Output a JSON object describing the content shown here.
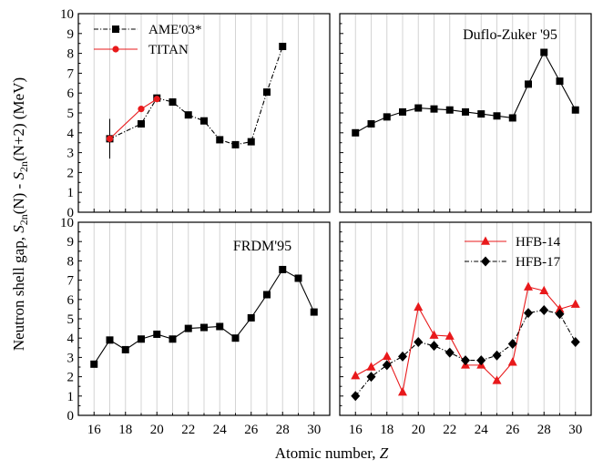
{
  "figure": {
    "ylabel": "Neutron shell gap, S2n(N) - S2n(N+2) (MeV)",
    "ylabel_parts": {
      "prefix": "Neutron shell gap, ",
      "s1": "S",
      "sub1": "2n",
      "mid": "(N) - ",
      "s2": "S",
      "sub2": "2n",
      "suffix": "(N+2) (MeV)"
    },
    "xlabel": "Atomic number, Z",
    "xlabel_parts": {
      "prefix": "Atomic number, ",
      "var": "Z"
    }
  },
  "chart_data": [
    {
      "type": "line",
      "panel": "top-left",
      "title": "",
      "x_range": [
        15,
        31
      ],
      "ylim": [
        0,
        10
      ],
      "grid": "vertical",
      "yticks": [
        0,
        1,
        2,
        3,
        4,
        5,
        6,
        7,
        8,
        9,
        10
      ],
      "xticks": [
        16,
        18,
        20,
        22,
        24,
        26,
        28,
        30
      ],
      "legend": "top-left",
      "series": [
        {
          "name": "AME'03*",
          "color": "#000000",
          "marker": "square",
          "line_style": "dash-dot",
          "x": [
            17,
            19,
            20,
            21,
            22,
            23,
            24,
            25,
            26,
            27,
            28
          ],
          "y": [
            3.7,
            4.45,
            5.75,
            5.55,
            4.9,
            4.6,
            3.65,
            3.4,
            3.55,
            6.05,
            8.35
          ],
          "error": [
            1.0,
            0,
            0,
            0,
            0,
            0,
            0,
            0,
            0,
            0,
            0
          ]
        },
        {
          "name": "TITAN",
          "color": "#e8191b",
          "marker": "circle",
          "line_style": "solid",
          "x": [
            17,
            19,
            20
          ],
          "y": [
            3.7,
            5.2,
            5.7
          ]
        }
      ]
    },
    {
      "type": "line",
      "panel": "top-right",
      "title": "Duflo-Zuker '95",
      "x_range": [
        15,
        31
      ],
      "ylim": [
        0,
        10
      ],
      "grid": "vertical",
      "xticks": [
        16,
        18,
        20,
        22,
        24,
        26,
        28,
        30
      ],
      "series": [
        {
          "color": "#000000",
          "marker": "square",
          "line_style": "solid",
          "x": [
            16,
            17,
            18,
            19,
            20,
            21,
            22,
            23,
            24,
            25,
            26,
            27,
            28,
            29,
            30
          ],
          "y": [
            4.0,
            4.45,
            4.8,
            5.05,
            5.25,
            5.2,
            5.15,
            5.05,
            4.95,
            4.85,
            4.75,
            6.45,
            8.05,
            6.6,
            5.15
          ]
        }
      ]
    },
    {
      "type": "line",
      "panel": "bottom-left",
      "title": "FRDM'95",
      "x_range": [
        15,
        31
      ],
      "ylim": [
        0,
        10
      ],
      "grid": "vertical",
      "yticks": [
        0,
        1,
        2,
        3,
        4,
        5,
        6,
        7,
        8,
        9,
        10
      ],
      "xticks": [
        16,
        18,
        20,
        22,
        24,
        26,
        28,
        30
      ],
      "series": [
        {
          "color": "#000000",
          "marker": "square",
          "line_style": "solid",
          "x": [
            16,
            17,
            18,
            19,
            20,
            21,
            22,
            23,
            24,
            25,
            26,
            27,
            28,
            29,
            30
          ],
          "y": [
            2.65,
            3.9,
            3.4,
            3.95,
            4.2,
            3.95,
            4.5,
            4.55,
            4.6,
            4.0,
            5.05,
            6.25,
            7.55,
            7.1,
            5.35
          ]
        }
      ]
    },
    {
      "type": "line",
      "panel": "bottom-right",
      "title": "",
      "x_range": [
        15,
        31
      ],
      "ylim": [
        0,
        10
      ],
      "grid": "vertical",
      "xticks": [
        16,
        18,
        20,
        22,
        24,
        26,
        28,
        30
      ],
      "legend": "top-right",
      "series": [
        {
          "name": "HFB-14",
          "color": "#e8191b",
          "marker": "triangle",
          "line_style": "solid",
          "x": [
            16,
            17,
            18,
            19,
            20,
            21,
            22,
            23,
            24,
            25,
            26,
            27,
            28,
            29,
            30
          ],
          "y": [
            2.05,
            2.5,
            3.05,
            1.2,
            5.6,
            4.15,
            4.1,
            2.6,
            2.6,
            1.8,
            2.75,
            6.65,
            6.45,
            5.5,
            5.75
          ]
        },
        {
          "name": "HFB-17",
          "color": "#000000",
          "marker": "diamond",
          "line_style": "dash-dot",
          "x": [
            16,
            17,
            18,
            19,
            20,
            21,
            22,
            23,
            24,
            25,
            26,
            27,
            28,
            29,
            30
          ],
          "y": [
            1.0,
            2.0,
            2.6,
            3.05,
            3.8,
            3.6,
            3.25,
            2.85,
            2.85,
            3.1,
            3.7,
            5.3,
            5.45,
            5.25,
            3.8
          ]
        }
      ]
    }
  ]
}
